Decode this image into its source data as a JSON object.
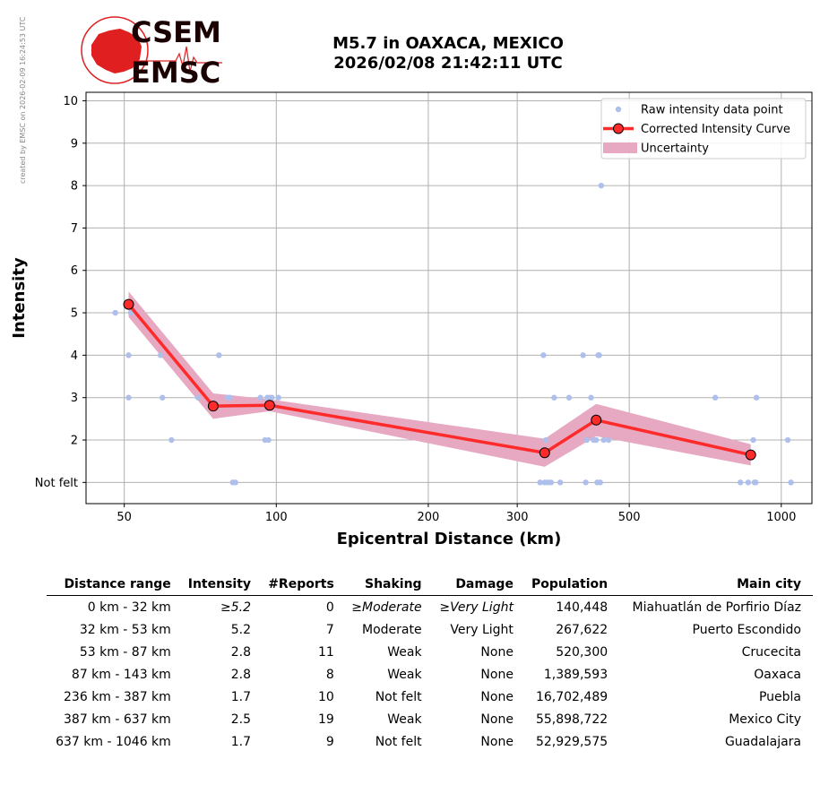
{
  "credit": "created by EMSC on 2026-02-09 16:24:53 UTC",
  "logo": {
    "line1": "CSEM",
    "line2": "EMSC",
    "accent": "#e02020"
  },
  "header": {
    "title": "M5.7 in OAXACA, MEXICO",
    "subtitle": "2026/02/08 21:42:11 UTC"
  },
  "chart_data": {
    "type": "scatter",
    "xlabel": "Epicentral Distance (km)",
    "ylabel": "Intensity",
    "xscale": "log",
    "xlim": [
      42,
      1150
    ],
    "ylim": [
      0.5,
      10.2
    ],
    "xticks": [
      50,
      100,
      200,
      300,
      500,
      1000
    ],
    "xtick_labels": [
      "50",
      "100",
      "200",
      "300",
      "500",
      "1000"
    ],
    "yticks": [
      1,
      2,
      3,
      4,
      5,
      6,
      7,
      8,
      9,
      10
    ],
    "ytick_labels": [
      "Not felt",
      "2",
      "3",
      "4",
      "5",
      "6",
      "7",
      "8",
      "9",
      "10"
    ],
    "grid": true,
    "legend_position": "top-right",
    "series": [
      {
        "name": "Raw intensity data point",
        "kind": "points",
        "color": "#aebfeb",
        "points": [
          [
            48,
            5
          ],
          [
            51,
            4
          ],
          [
            51,
            3
          ],
          [
            51.5,
            5
          ],
          [
            59,
            4
          ],
          [
            59.5,
            3
          ],
          [
            62,
            2
          ],
          [
            70,
            3
          ],
          [
            77,
            4
          ],
          [
            80,
            3
          ],
          [
            81,
            3
          ],
          [
            82,
            1
          ],
          [
            83,
            1
          ],
          [
            93,
            3
          ],
          [
            95,
            2
          ],
          [
            96,
            3
          ],
          [
            96.5,
            2
          ],
          [
            97,
            3
          ],
          [
            98,
            3
          ],
          [
            101,
            3
          ],
          [
            333,
            1
          ],
          [
            338,
            4
          ],
          [
            340,
            1
          ],
          [
            342,
            2
          ],
          [
            345,
            1
          ],
          [
            350,
            1
          ],
          [
            355,
            3
          ],
          [
            365,
            1
          ],
          [
            380,
            3
          ],
          [
            405,
            4
          ],
          [
            410,
            1
          ],
          [
            412,
            2
          ],
          [
            420,
            3
          ],
          [
            425,
            2
          ],
          [
            430,
            2
          ],
          [
            432,
            1
          ],
          [
            434,
            4
          ],
          [
            436,
            4
          ],
          [
            438,
            1
          ],
          [
            440,
            8
          ],
          [
            445,
            2
          ],
          [
            455,
            2
          ],
          [
            740,
            3
          ],
          [
            830,
            1
          ],
          [
            860,
            1
          ],
          [
            880,
            2
          ],
          [
            885,
            1
          ],
          [
            890,
            1
          ],
          [
            893,
            3
          ],
          [
            1030,
            2
          ],
          [
            1045,
            1
          ]
        ]
      },
      {
        "name": "Corrected Intensity Curve",
        "kind": "line",
        "color": "#ff2a2a",
        "points": [
          [
            51,
            5.2
          ],
          [
            75,
            2.8
          ],
          [
            97,
            2.82
          ],
          [
            340,
            1.7
          ],
          [
            430,
            2.47
          ],
          [
            870,
            1.65
          ]
        ]
      },
      {
        "name": "Uncertainty",
        "kind": "band",
        "color": "#e7a8c2",
        "points": [
          [
            51,
            5.2
          ],
          [
            75,
            2.8
          ],
          [
            97,
            2.82
          ],
          [
            340,
            1.7
          ],
          [
            430,
            2.47
          ],
          [
            870,
            1.65
          ]
        ],
        "half_width": [
          0.3,
          0.3,
          0.14,
          0.33,
          0.38,
          0.25
        ]
      }
    ]
  },
  "table": {
    "headers": [
      "Distance range",
      "Intensity",
      "#Reports",
      "Shaking",
      "Damage",
      "Population",
      "Main city"
    ],
    "rows": [
      {
        "cells": [
          "0 km -   32 km",
          "≥5.2",
          "0",
          "≥Moderate",
          "≥Very Light",
          "140,448",
          "Miahuatlán de Porfirio Díaz"
        ],
        "italic": [
          1,
          3,
          4
        ]
      },
      {
        "cells": [
          "32 km -   53 km",
          "5.2",
          "7",
          "Moderate",
          "Very Light",
          "267,622",
          "Puerto Escondido"
        ],
        "italic": []
      },
      {
        "cells": [
          "53 km -   87 km",
          "2.8",
          "11",
          "Weak",
          "None",
          "520,300",
          "Crucecita"
        ],
        "italic": []
      },
      {
        "cells": [
          "87 km -  143 km",
          "2.8",
          "8",
          "Weak",
          "None",
          "1,389,593",
          "Oaxaca"
        ],
        "italic": []
      },
      {
        "cells": [
          "236 km -  387 km",
          "1.7",
          "10",
          "Not felt",
          "None",
          "16,702,489",
          "Puebla"
        ],
        "italic": []
      },
      {
        "cells": [
          "387 km -  637 km",
          "2.5",
          "19",
          "Weak",
          "None",
          "55,898,722",
          "Mexico City"
        ],
        "italic": []
      },
      {
        "cells": [
          "637 km - 1046 km",
          "1.7",
          "9",
          "Not felt",
          "None",
          "52,929,575",
          "Guadalajara"
        ],
        "italic": []
      }
    ]
  }
}
